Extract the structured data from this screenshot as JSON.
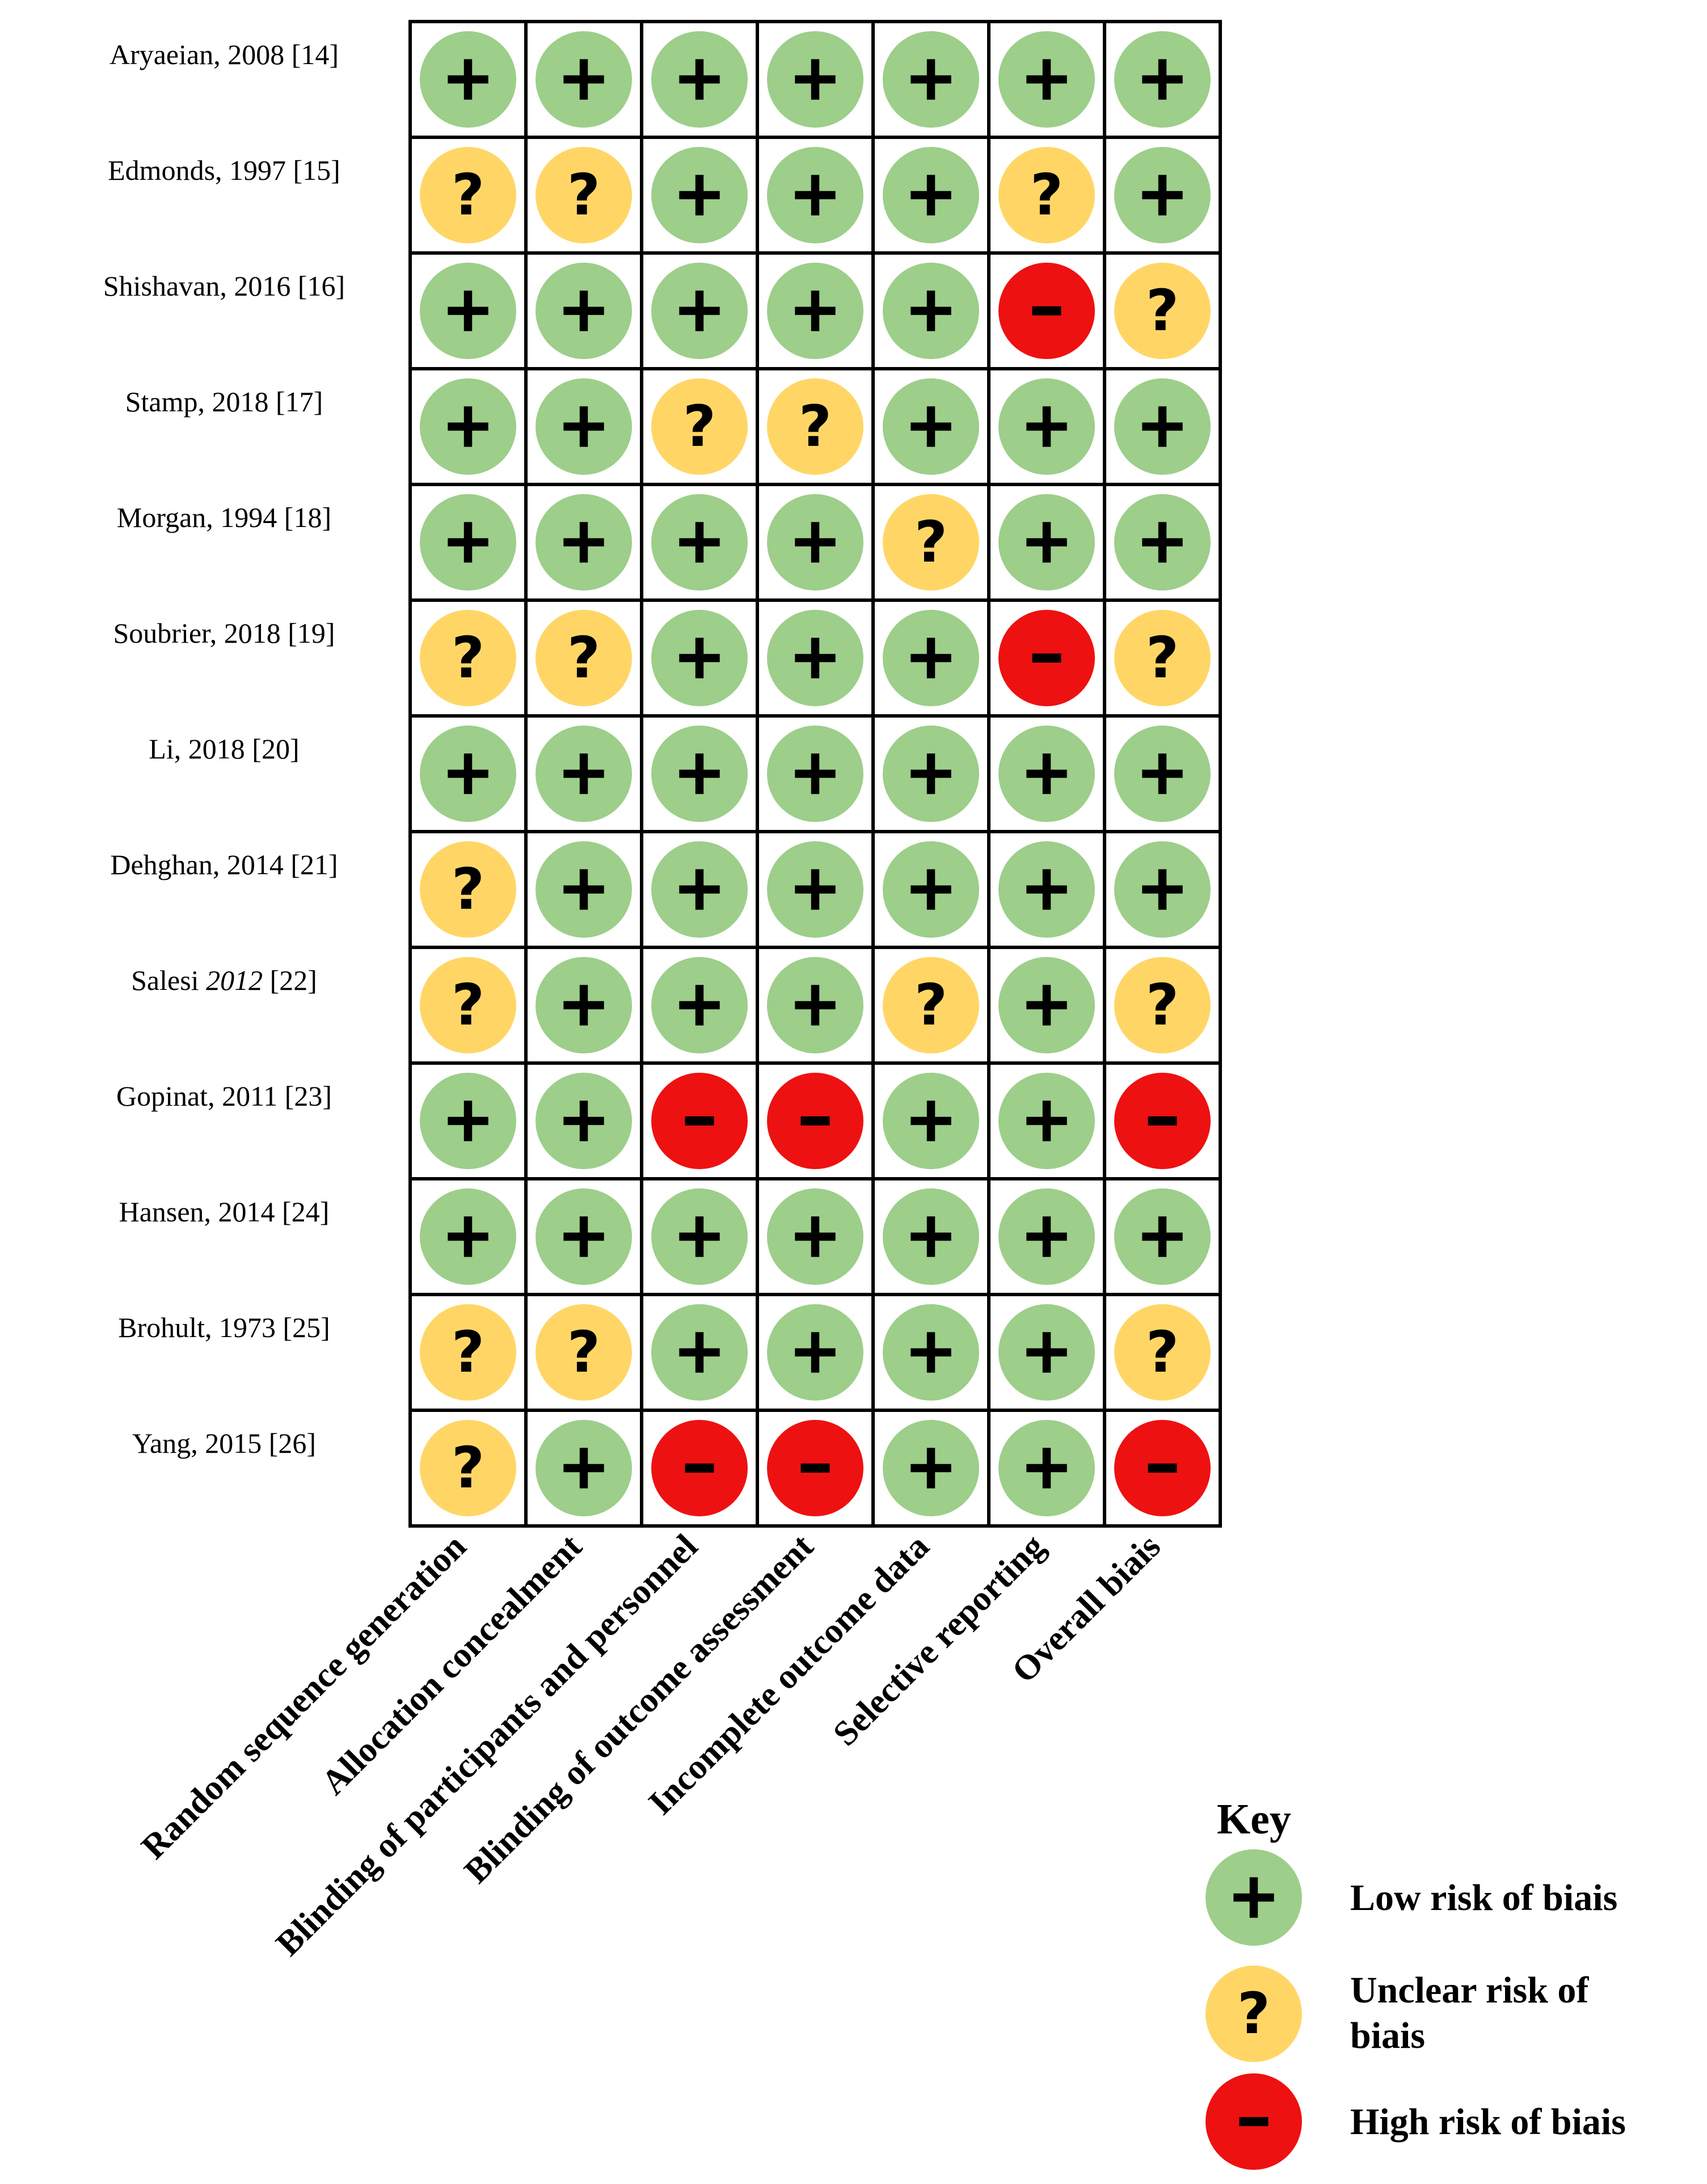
{
  "chart_data": {
    "type": "table",
    "title": "",
    "studies": [
      {
        "name": "Aryaeian, 2008 [14]",
        "name_parts": [
          {
            "text": "Aryaeian, 2008 [14]",
            "italic": false
          }
        ]
      },
      {
        "name": "Edmonds, 1997 [15]",
        "name_parts": [
          {
            "text": "Edmonds, 1997 [15]",
            "italic": false
          }
        ]
      },
      {
        "name": "Shishavan, 2016 [16]",
        "name_parts": [
          {
            "text": "Shishavan, 2016 [16]",
            "italic": false
          }
        ]
      },
      {
        "name": "Stamp, 2018 [17]",
        "name_parts": [
          {
            "text": "Stamp, 2018 [17]",
            "italic": false
          }
        ]
      },
      {
        "name": "Morgan, 1994 [18]",
        "name_parts": [
          {
            "text": "Morgan, 1994 [18]",
            "italic": false
          }
        ]
      },
      {
        "name": "Soubrier, 2018 [19]",
        "name_parts": [
          {
            "text": "Soubrier, 2018 [19]",
            "italic": false
          }
        ]
      },
      {
        "name": "Li, 2018 [20]",
        "name_parts": [
          {
            "text": "Li, 2018 [20]",
            "italic": false
          }
        ]
      },
      {
        "name": "Dehghan, 2014 [21]",
        "name_parts": [
          {
            "text": "Dehghan, 2014 [21]",
            "italic": false
          }
        ]
      },
      {
        "name": "Salesi 2012 [22]",
        "name_parts": [
          {
            "text": "Salesi ",
            "italic": false
          },
          {
            "text": "2012",
            "italic": true
          },
          {
            "text": " [22]",
            "italic": false
          }
        ]
      },
      {
        "name": "Gopinat, 2011 [23]",
        "name_parts": [
          {
            "text": "Gopinat, 2011 [23]",
            "italic": false
          }
        ]
      },
      {
        "name": "Hansen, 2014 [24]",
        "name_parts": [
          {
            "text": "Hansen, 2014 [24]",
            "italic": false
          }
        ]
      },
      {
        "name": "Brohult, 1973 [25]",
        "name_parts": [
          {
            "text": "Brohult, 1973 [25]",
            "italic": false
          }
        ]
      },
      {
        "name": "Yang, 2015 [26]",
        "name_parts": [
          {
            "text": "Yang, 2015 [26]",
            "italic": false
          }
        ]
      }
    ],
    "domains": [
      "Random sequence generation",
      "Allocation concealment",
      "Blinding of participants and personnel",
      "Blinding of outcome assessment",
      "Incomplete outcome data",
      "Selective reporting",
      "Overall biais"
    ],
    "ratings": [
      [
        "low",
        "low",
        "low",
        "low",
        "low",
        "low",
        "low"
      ],
      [
        "unclear",
        "unclear",
        "low",
        "low",
        "low",
        "unclear",
        "low"
      ],
      [
        "low",
        "low",
        "low",
        "low",
        "low",
        "high",
        "unclear"
      ],
      [
        "low",
        "low",
        "unclear",
        "unclear",
        "low",
        "low",
        "low"
      ],
      [
        "low",
        "low",
        "low",
        "low",
        "unclear",
        "low",
        "low"
      ],
      [
        "unclear",
        "unclear",
        "low",
        "low",
        "low",
        "high",
        "unclear"
      ],
      [
        "low",
        "low",
        "low",
        "low",
        "low",
        "low",
        "low"
      ],
      [
        "unclear",
        "low",
        "low",
        "low",
        "low",
        "low",
        "low"
      ],
      [
        "unclear",
        "low",
        "low",
        "low",
        "unclear",
        "low",
        "unclear"
      ],
      [
        "low",
        "low",
        "high",
        "high",
        "low",
        "low",
        "high"
      ],
      [
        "low",
        "low",
        "low",
        "low",
        "low",
        "low",
        "low"
      ],
      [
        "unclear",
        "unclear",
        "low",
        "low",
        "low",
        "low",
        "unclear"
      ],
      [
        "unclear",
        "low",
        "high",
        "high",
        "low",
        "low",
        "high"
      ]
    ],
    "legend": {
      "title": "Key",
      "placement": "bottom-right",
      "items": [
        {
          "level": "low",
          "symbol": "+",
          "label_lines": [
            "Low risk of biais"
          ]
        },
        {
          "level": "unclear",
          "symbol": "?",
          "label_lines": [
            "Unclear risk of",
            "biais"
          ]
        },
        {
          "level": "high",
          "symbol": "−",
          "label_lines": [
            "High risk of biais"
          ]
        }
      ]
    },
    "colors": {
      "low": "#9dce8a",
      "unclear": "#ffd666",
      "high": "#ee1111",
      "grid": "#000000"
    }
  }
}
